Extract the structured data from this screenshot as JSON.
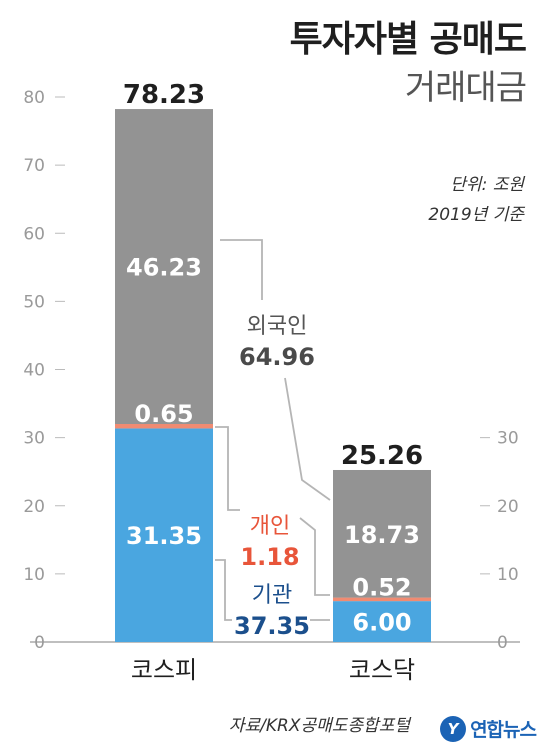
{
  "title": {
    "main": "투자자별 공매도",
    "sub": "거래대금"
  },
  "meta": {
    "unit": "단위: 조원",
    "basis": "2019년 기준"
  },
  "footer": {
    "source": "자료/KRX공매도종합포털",
    "logo_text": "연합뉴스",
    "logo_mark": "Y"
  },
  "colors": {
    "foreign": "#939393",
    "individual": "#f08b72",
    "institution": "#4aa6e0",
    "individual_text": "#e8553a",
    "institution_text": "#1b4f8c",
    "axis": "#aaaaaa",
    "connector": "#b5b5b5"
  },
  "chart_data": {
    "type": "bar",
    "stacked": true,
    "categories": [
      "코스피",
      "코스닥"
    ],
    "totals": [
      "78.23",
      "25.26"
    ],
    "series": [
      {
        "name": "기관",
        "key": "institution",
        "values": [
          31.35,
          6.0
        ],
        "labels": [
          "31.35",
          "6.00"
        ]
      },
      {
        "name": "개인",
        "key": "individual",
        "values": [
          0.65,
          0.52
        ],
        "labels": [
          "0.65",
          "0.52"
        ]
      },
      {
        "name": "외국인",
        "key": "foreign",
        "values": [
          46.23,
          18.73
        ],
        "labels": [
          "46.23",
          "18.73"
        ]
      }
    ],
    "group_totals": [
      {
        "name": "외국인",
        "value": "64.96",
        "key": "foreign"
      },
      {
        "name": "개인",
        "value": "1.18",
        "key": "individual"
      },
      {
        "name": "기관",
        "value": "37.35",
        "key": "institution"
      }
    ],
    "left_axis": {
      "min": 0,
      "max": 80,
      "ticks": [
        0,
        10,
        20,
        30,
        40,
        50,
        60,
        70,
        80
      ]
    },
    "right_axis": {
      "min": 0,
      "max": 30,
      "ticks": [
        0,
        10,
        20,
        30
      ]
    }
  }
}
